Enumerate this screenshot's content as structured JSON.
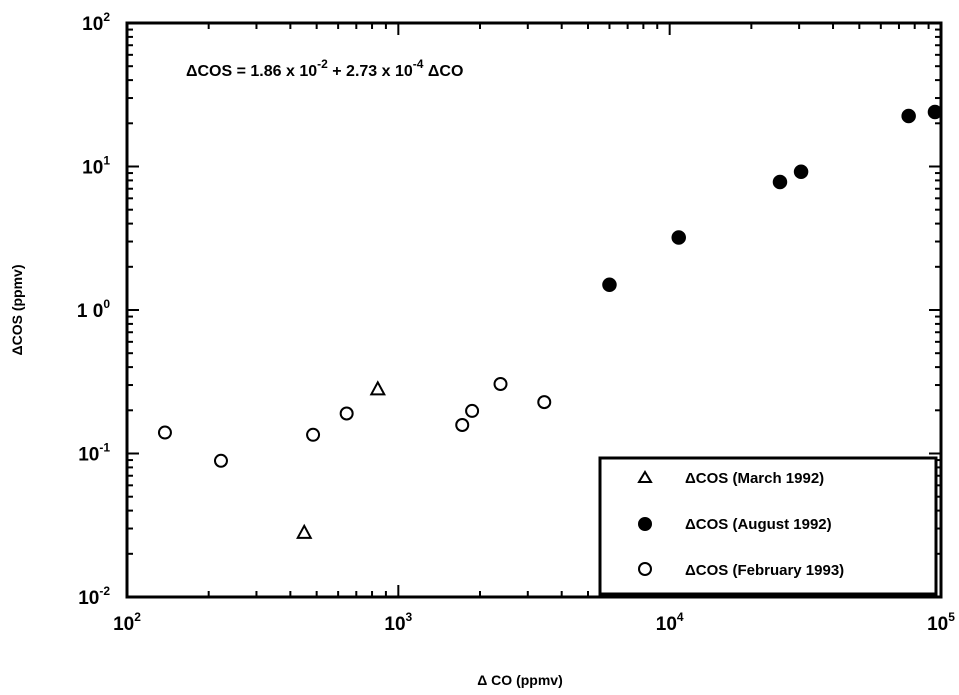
{
  "chart_data": {
    "type": "scatter",
    "title": "",
    "xlabel": "Δ CO (ppmv)",
    "ylabel": "ΔCOS (ppmv)",
    "xscale": "log",
    "yscale": "log",
    "xlim": [
      100,
      100000
    ],
    "ylim": [
      0.01,
      100
    ],
    "grid": false,
    "legend_position": "bottom-right",
    "x_ticks": [
      {
        "base": "10",
        "exp": "2",
        "value": 100
      },
      {
        "base": "10",
        "exp": "3",
        "value": 1000
      },
      {
        "base": "10",
        "exp": "4",
        "value": 10000
      },
      {
        "base": "10",
        "exp": "5",
        "value": 100000
      }
    ],
    "y_ticks": [
      {
        "base": "10",
        "exp": "2",
        "value": 100
      },
      {
        "base": "10",
        "exp": "1",
        "value": 10
      },
      {
        "base": "1 0",
        "exp": "0",
        "value": 1
      },
      {
        "base": "10",
        "exp": "-1",
        "value": 0.1
      },
      {
        "base": "10",
        "exp": "-2",
        "value": 0.01
      }
    ],
    "annotation": {
      "lhs": "ΔCOS = 1.86  x 10",
      "exp1": "-2",
      "mid": " + 2.73  x 10",
      "exp2": "-4",
      "rhs": " ΔCO"
    },
    "series": [
      {
        "name": "ΔCOS  (March  1992)",
        "marker": "open-triangle",
        "x": [
          450,
          840
        ],
        "y": [
          0.028,
          0.28
        ]
      },
      {
        "name": "ΔCOS  (August  1992)",
        "marker": "filled-circle",
        "x": [
          6000,
          10800,
          25500,
          30500,
          76000,
          95000
        ],
        "y": [
          1.5,
          3.2,
          7.8,
          9.2,
          22.5,
          24.0
        ]
      },
      {
        "name": "ΔCOS  (February  1993)",
        "marker": "open-circle",
        "x": [
          138,
          222,
          485,
          645,
          1720,
          1870,
          2380,
          3450
        ],
        "y": [
          0.14,
          0.089,
          0.135,
          0.19,
          0.158,
          0.198,
          0.305,
          0.228
        ]
      }
    ]
  }
}
